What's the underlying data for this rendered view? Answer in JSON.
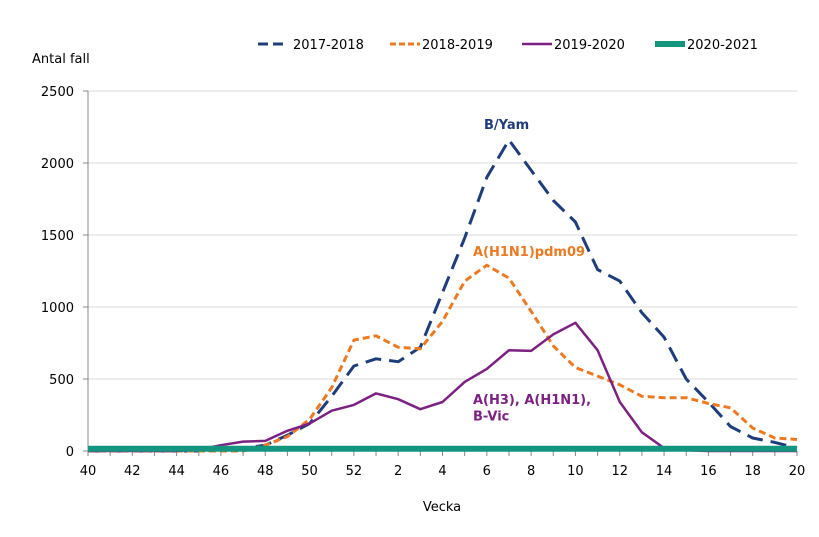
{
  "chart_data": {
    "type": "line",
    "title": "",
    "ylabel": "Antal fall",
    "xlabel": "Vecka",
    "ylim": [
      0,
      2500
    ],
    "yticks": [
      0,
      500,
      1000,
      1500,
      2000,
      2500
    ],
    "grid": true,
    "legend_position": "top",
    "x": [
      "40",
      "41",
      "42",
      "43",
      "44",
      "45",
      "46",
      "47",
      "48",
      "49",
      "50",
      "51",
      "52",
      "1",
      "2",
      "3",
      "4",
      "5",
      "6",
      "7",
      "8",
      "9",
      "10",
      "11",
      "12",
      "13",
      "14",
      "15",
      "16",
      "17",
      "18",
      "19",
      "20"
    ],
    "xtick_labels": [
      "40",
      "42",
      "44",
      "46",
      "48",
      "50",
      "52",
      "2",
      "4",
      "6",
      "8",
      "10",
      "12",
      "14",
      "16",
      "18",
      "20"
    ],
    "series": [
      {
        "name": "2017-2018",
        "color": "#1f3d7a",
        "style": "longdash",
        "values": [
          0,
          0,
          0,
          0,
          0,
          0,
          10,
          20,
          40,
          110,
          190,
          380,
          590,
          640,
          620,
          720,
          1100,
          1480,
          1900,
          2160,
          1950,
          1740,
          1590,
          1260,
          1180,
          960,
          790,
          500,
          340,
          170,
          90,
          60,
          20
        ]
      },
      {
        "name": "2018-2019",
        "color": "#ec7a23",
        "style": "shortdash",
        "values": [
          0,
          0,
          0,
          0,
          0,
          0,
          0,
          0,
          40,
          100,
          220,
          440,
          770,
          800,
          720,
          710,
          900,
          1180,
          1290,
          1200,
          970,
          730,
          580,
          520,
          460,
          380,
          370,
          370,
          330,
          300,
          160,
          90,
          80
        ]
      },
      {
        "name": "2019-2020",
        "color": "#7b2182",
        "style": "solid",
        "values": [
          0,
          0,
          0,
          0,
          0,
          10,
          40,
          65,
          70,
          140,
          190,
          280,
          320,
          400,
          360,
          290,
          340,
          480,
          570,
          700,
          695,
          810,
          890,
          700,
          340,
          130,
          20,
          5,
          0,
          0,
          0,
          0,
          0
        ]
      },
      {
        "name": "2020-2021",
        "color": "#14957f",
        "style": "thick",
        "values": [
          15,
          15,
          15,
          15,
          15,
          15,
          15,
          15,
          15,
          15,
          15,
          15,
          15,
          15,
          15,
          15,
          15,
          15,
          15,
          15,
          15,
          15,
          15,
          15,
          15,
          15,
          15,
          15,
          15,
          15,
          15,
          15,
          15
        ]
      }
    ],
    "annotations": [
      {
        "text": "B/Yam",
        "color": "#1f3d7a",
        "x": "7",
        "y": 2270
      },
      {
        "text": "A(H1N1)pdm09",
        "color": "#ec7a23",
        "x": "6",
        "y": 1390
      },
      {
        "text": "A(H3), A(H1N1),",
        "color": "#7b2182",
        "x": "6",
        "y": 360
      },
      {
        "text": "B-Vic",
        "color": "#7b2182",
        "x": "6",
        "y": 245
      }
    ]
  }
}
